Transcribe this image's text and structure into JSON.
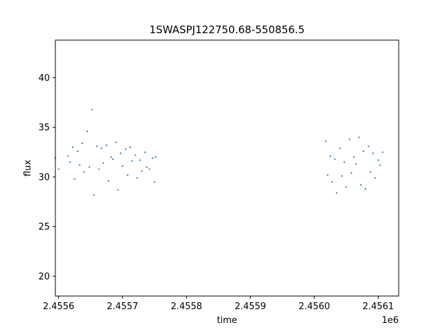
{
  "chart_data": {
    "type": "scatter",
    "title": "1SWASPJ122750.68-550856.5",
    "xlabel": "time",
    "ylabel": "flux",
    "x_offset_label": "1e6",
    "xlim": [
      2455595,
      2456132
    ],
    "ylim": [
      18,
      43.8
    ],
    "x_ticks": [
      2455600,
      2455700,
      2455800,
      2455900,
      2456000,
      2456100
    ],
    "x_tick_labels": [
      "2.4556",
      "2.4557",
      "2.4558",
      "2.4559",
      "2.4560",
      "2.4561"
    ],
    "y_ticks": [
      20,
      25,
      30,
      35,
      40
    ],
    "y_tick_labels": [
      "20",
      "25",
      "30",
      "35",
      "40"
    ],
    "grid": false,
    "marker_color": "#1f77b4",
    "series": [
      {
        "x": [
          2455615,
          2455618,
          2455622,
          2455625,
          2455630,
          2455633,
          2455637,
          2455640,
          2455645,
          2455648,
          2455652,
          2455655,
          2455660,
          2455663,
          2455667,
          2455670,
          2455675,
          2455678,
          2455682,
          2455685,
          2455690,
          2455693,
          2455697,
          2455700,
          2455705,
          2455708,
          2455712,
          2455715,
          2455720,
          2455723,
          2455727,
          2455730,
          2455735,
          2455738,
          2455742,
          2455747,
          2455750,
          2455752
        ],
        "y": [
          32.1,
          31.5,
          33.0,
          29.8,
          32.6,
          31.2,
          33.4,
          30.5,
          34.6,
          31.0,
          36.8,
          28.2,
          33.1,
          30.8,
          32.9,
          31.4,
          33.2,
          29.6,
          32.0,
          31.8,
          33.5,
          28.7,
          32.4,
          31.1,
          32.8,
          30.2,
          33.0,
          31.6,
          32.2,
          29.9,
          31.7,
          30.6,
          32.5,
          31.0,
          30.8,
          31.9,
          29.5,
          32.0
        ]
      },
      {
        "x": [
          2455595,
          2455600,
          2456018,
          2456021,
          2456025,
          2456028,
          2456032,
          2456035,
          2456040,
          2456043,
          2456047,
          2456050,
          2456055,
          2456058,
          2456062,
          2456065,
          2456070,
          2456073,
          2456077,
          2456080,
          2456085,
          2456088,
          2456092,
          2456095,
          2456100,
          2456103,
          2456107
        ],
        "y": [
          31.9,
          30.8,
          33.6,
          30.2,
          32.1,
          29.5,
          31.8,
          28.4,
          32.9,
          30.1,
          31.5,
          29.0,
          33.8,
          30.4,
          32.0,
          31.3,
          34.0,
          29.2,
          32.6,
          28.8,
          33.1,
          30.5,
          32.4,
          29.9,
          31.7,
          31.2,
          32.5
        ]
      }
    ]
  }
}
